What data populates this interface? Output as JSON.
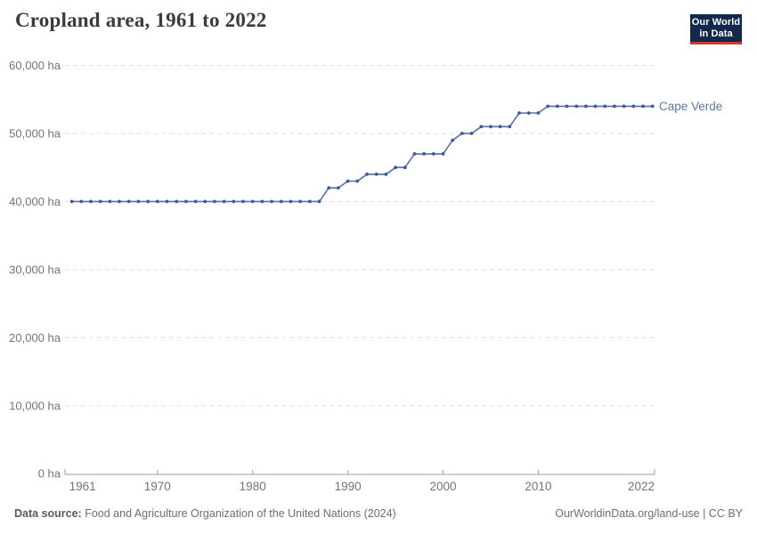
{
  "header": {
    "title": "Cropland area, 1961 to 2022",
    "logo": {
      "line1": "Our World",
      "line2": "in Data"
    }
  },
  "chart_data": {
    "type": "line",
    "title": "Cropland area, 1961 to 2022",
    "entity": "Cape Verde",
    "unit": "ha",
    "xlim": [
      1961,
      2022
    ],
    "ylim": [
      0,
      60000
    ],
    "grid": true,
    "legend_position": "end-of-line-label",
    "x": [
      1961,
      1962,
      1963,
      1964,
      1965,
      1966,
      1967,
      1968,
      1969,
      1970,
      1971,
      1972,
      1973,
      1974,
      1975,
      1976,
      1977,
      1978,
      1979,
      1980,
      1981,
      1982,
      1983,
      1984,
      1985,
      1986,
      1987,
      1988,
      1989,
      1990,
      1991,
      1992,
      1993,
      1994,
      1995,
      1996,
      1997,
      1998,
      1999,
      2000,
      2001,
      2002,
      2003,
      2004,
      2005,
      2006,
      2007,
      2008,
      2009,
      2010,
      2011,
      2012,
      2013,
      2014,
      2015,
      2016,
      2017,
      2018,
      2019,
      2020,
      2021,
      2022
    ],
    "series": [
      {
        "name": "Cape Verde",
        "values": [
          40000,
          40000,
          40000,
          40000,
          40000,
          40000,
          40000,
          40000,
          40000,
          40000,
          40000,
          40000,
          40000,
          40000,
          40000,
          40000,
          40000,
          40000,
          40000,
          40000,
          40000,
          40000,
          40000,
          40000,
          40000,
          40000,
          40000,
          42000,
          42000,
          43000,
          43000,
          44000,
          44000,
          44000,
          45000,
          45000,
          47000,
          47000,
          47000,
          47000,
          49000,
          50000,
          50000,
          51000,
          51000,
          51000,
          51000,
          53000,
          53000,
          53000,
          54000,
          54000,
          54000,
          54000,
          54000,
          54000,
          54000,
          54000,
          54000,
          54000,
          54000,
          54000
        ]
      }
    ],
    "y_ticks": [
      0,
      10000,
      20000,
      30000,
      40000,
      50000,
      60000
    ],
    "y_tick_labels": [
      "0 ha",
      "10,000 ha",
      "20,000 ha",
      "30,000 ha",
      "40,000 ha",
      "50,000 ha",
      "60,000 ha"
    ],
    "x_ticks": [
      1961,
      1970,
      1980,
      1990,
      2000,
      2010,
      2022
    ],
    "x_tick_labels": [
      "1961",
      "1970",
      "1980",
      "1990",
      "2000",
      "2010",
      "2022"
    ],
    "colors": {
      "line": "#566fa5",
      "point": "#3f589d",
      "entity_label": "#5b7aa8",
      "grid": "#dedede",
      "axis": "#9e9e9e",
      "tick_label": "#737373"
    }
  },
  "footer": {
    "source_label": "Data source:",
    "source_text": " Food and Agriculture Organization of the United Nations (2024)",
    "right_text": "OurWorldinData.org/land-use | CC BY"
  }
}
